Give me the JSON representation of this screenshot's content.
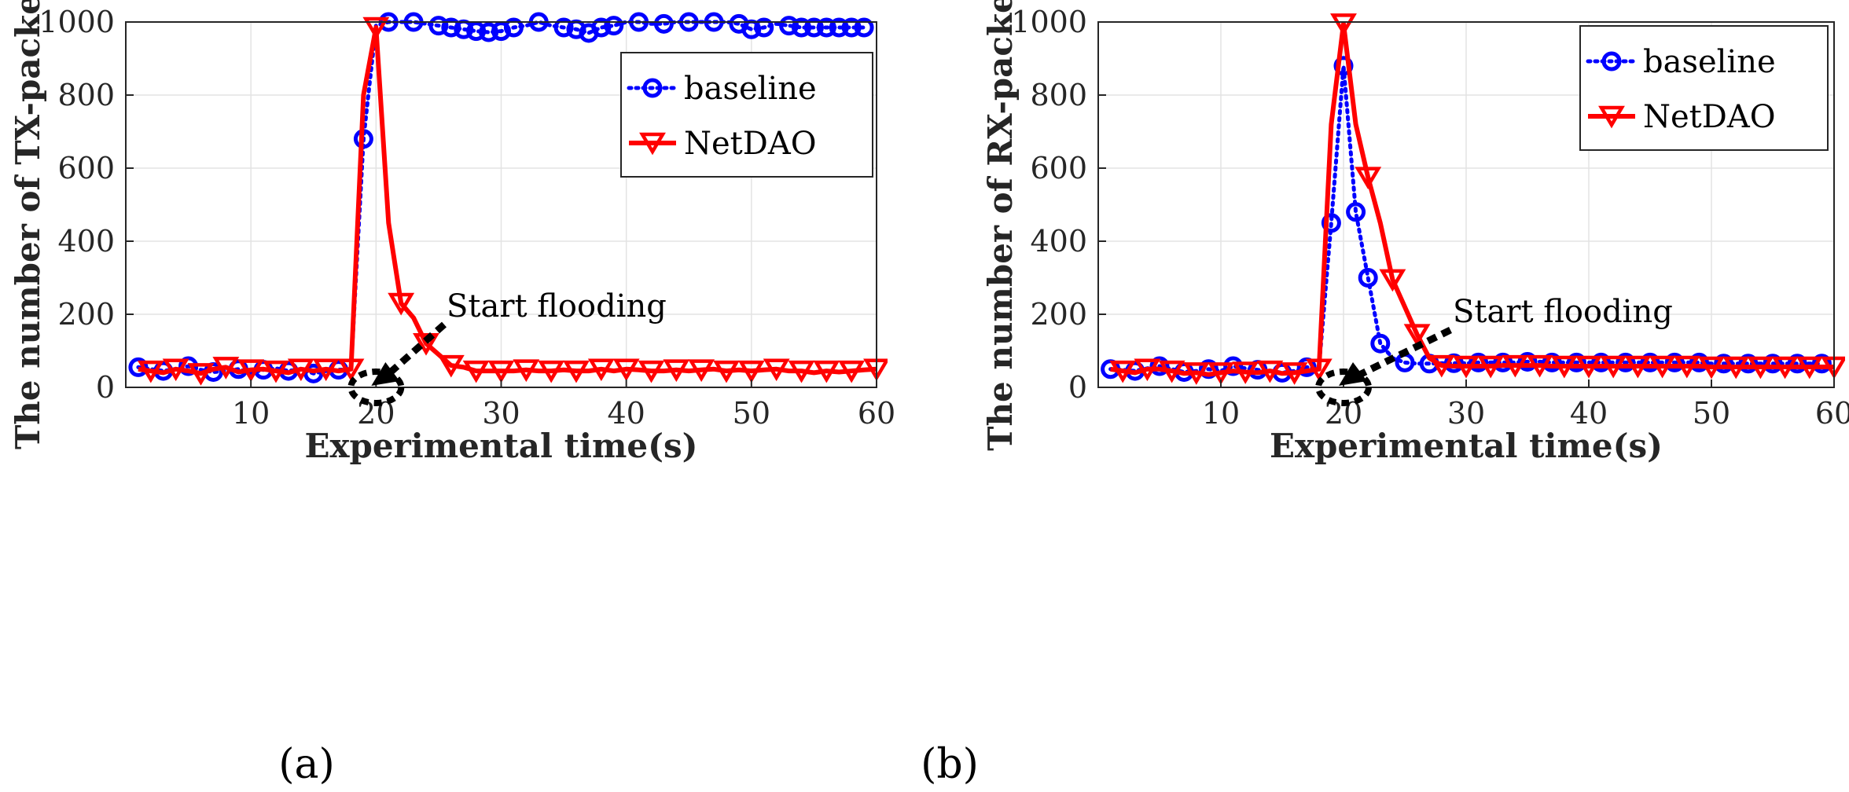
{
  "chart_data": [
    {
      "type": "line",
      "panel_label": "(a)",
      "xlabel": "Experimental time(s)",
      "ylabel": "The number of TX-packets",
      "xlim": [
        0,
        60
      ],
      "ylim": [
        0,
        1000
      ],
      "xticks": [
        "10",
        "20",
        "30",
        "40",
        "50",
        "60"
      ],
      "yticks": [
        "0",
        "200",
        "400",
        "600",
        "800",
        "1000"
      ],
      "grid": true,
      "legend_position": "top-right",
      "annotation": {
        "text": "Start flooding",
        "target_x": 20,
        "target_y": 0
      },
      "series": [
        {
          "name": "baseline",
          "color": "#0000ff",
          "style": "dotted",
          "marker": "circle",
          "x": [
            1,
            2,
            3,
            4,
            5,
            6,
            7,
            8,
            9,
            10,
            11,
            12,
            13,
            14,
            15,
            16,
            17,
            18,
            19,
            20,
            21,
            22,
            23,
            24,
            25,
            26,
            27,
            28,
            29,
            30,
            31,
            32,
            33,
            34,
            35,
            36,
            37,
            38,
            39,
            40,
            41,
            42,
            43,
            44,
            45,
            46,
            47,
            48,
            49,
            50,
            51,
            52,
            53,
            54,
            55,
            56,
            57,
            58,
            59
          ],
          "values": [
            55,
            50,
            45,
            50,
            58,
            48,
            42,
            45,
            50,
            40,
            48,
            52,
            45,
            50,
            38,
            45,
            48,
            50,
            680,
            990,
            1000,
            1000,
            1000,
            995,
            990,
            985,
            980,
            975,
            972,
            975,
            985,
            990,
            1000,
            990,
            985,
            980,
            970,
            985,
            990,
            1000,
            1000,
            995,
            995,
            1000,
            1000,
            1000,
            1000,
            1000,
            995,
            980,
            985,
            995,
            990,
            985,
            985,
            985,
            985,
            985,
            985
          ],
          "marker_every": 2,
          "marker_start": 1
        },
        {
          "name": "NetDAO",
          "color": "#ff0000",
          "style": "solid",
          "marker": "triangle-down",
          "x": [
            1,
            2,
            3,
            4,
            5,
            6,
            7,
            8,
            9,
            10,
            11,
            12,
            13,
            14,
            15,
            16,
            17,
            18,
            19,
            20,
            21,
            22,
            23,
            24,
            25,
            26,
            27,
            28,
            29,
            30,
            31,
            32,
            33,
            34,
            35,
            36,
            37,
            38,
            39,
            40,
            41,
            42,
            43,
            44,
            45,
            46,
            47,
            48,
            49,
            50,
            51,
            52,
            53,
            54,
            55,
            56,
            57,
            58,
            59,
            60
          ],
          "values": [
            50,
            45,
            40,
            50,
            45,
            38,
            50,
            55,
            42,
            48,
            50,
            45,
            40,
            50,
            45,
            50,
            45,
            50,
            800,
            985,
            450,
            230,
            190,
            120,
            90,
            60,
            55,
            45,
            45,
            45,
            45,
            48,
            45,
            45,
            48,
            45,
            45,
            50,
            45,
            50,
            48,
            45,
            45,
            48,
            45,
            48,
            50,
            45,
            48,
            45,
            48,
            50,
            45,
            45,
            40,
            45,
            42,
            45,
            48,
            50
          ],
          "marker_every": 2,
          "marker_start": 2
        }
      ]
    },
    {
      "type": "line",
      "panel_label": "(b)",
      "xlabel": "Experimental time(s)",
      "ylabel": "The number of RX-packets",
      "xlim": [
        0,
        60
      ],
      "ylim": [
        0,
        1000
      ],
      "xticks": [
        "10",
        "20",
        "30",
        "40",
        "50",
        "60"
      ],
      "yticks": [
        "0",
        "200",
        "400",
        "600",
        "800",
        "1000"
      ],
      "grid": true,
      "legend_position": "top-right",
      "annotation": {
        "text": "Start flooding",
        "target_x": 20,
        "target_y": 0
      },
      "series": [
        {
          "name": "baseline",
          "color": "#0000ff",
          "style": "dotted",
          "marker": "circle",
          "x": [
            1,
            2,
            3,
            4,
            5,
            6,
            7,
            8,
            9,
            10,
            11,
            12,
            13,
            14,
            15,
            16,
            17,
            18,
            19,
            20,
            21,
            22,
            23,
            24,
            25,
            26,
            27,
            28,
            29,
            30,
            31,
            32,
            33,
            34,
            35,
            36,
            37,
            38,
            39,
            40,
            41,
            42,
            43,
            44,
            45,
            46,
            47,
            48,
            49,
            50,
            51,
            52,
            53,
            54,
            55,
            56,
            57,
            58,
            59
          ],
          "values": [
            50,
            48,
            45,
            52,
            58,
            50,
            42,
            45,
            50,
            45,
            58,
            52,
            48,
            45,
            40,
            45,
            55,
            55,
            450,
            880,
            480,
            300,
            120,
            80,
            68,
            65,
            65,
            66,
            66,
            66,
            68,
            68,
            68,
            68,
            70,
            70,
            68,
            68,
            68,
            68,
            68,
            68,
            68,
            68,
            68,
            68,
            68,
            68,
            68,
            65,
            65,
            65,
            65,
            65,
            65,
            65,
            65,
            65,
            65
          ],
          "marker_every": 2,
          "marker_start": 1
        },
        {
          "name": "NetDAO",
          "color": "#ff0000",
          "style": "solid",
          "marker": "triangle-down",
          "x": [
            1,
            2,
            3,
            4,
            5,
            6,
            7,
            8,
            9,
            10,
            11,
            12,
            13,
            14,
            15,
            16,
            17,
            18,
            19,
            20,
            21,
            22,
            23,
            24,
            25,
            26,
            27,
            28,
            29,
            30,
            31,
            32,
            33,
            34,
            35,
            36,
            37,
            38,
            39,
            40,
            41,
            42,
            43,
            44,
            45,
            46,
            47,
            48,
            49,
            50,
            51,
            52,
            53,
            54,
            55,
            56,
            57,
            58,
            59,
            60
          ],
          "values": [
            50,
            45,
            40,
            50,
            50,
            45,
            38,
            40,
            35,
            40,
            45,
            42,
            40,
            45,
            38,
            40,
            45,
            50,
            720,
            995,
            720,
            575,
            450,
            295,
            220,
            145,
            80,
            60,
            58,
            58,
            58,
            58,
            60,
            60,
            60,
            60,
            58,
            58,
            58,
            58,
            58,
            58,
            58,
            58,
            58,
            58,
            58,
            58,
            58,
            56,
            56,
            56,
            56,
            56,
            56,
            56,
            56,
            56,
            56,
            56
          ],
          "marker_every": 2,
          "marker_start": 2
        }
      ]
    }
  ]
}
